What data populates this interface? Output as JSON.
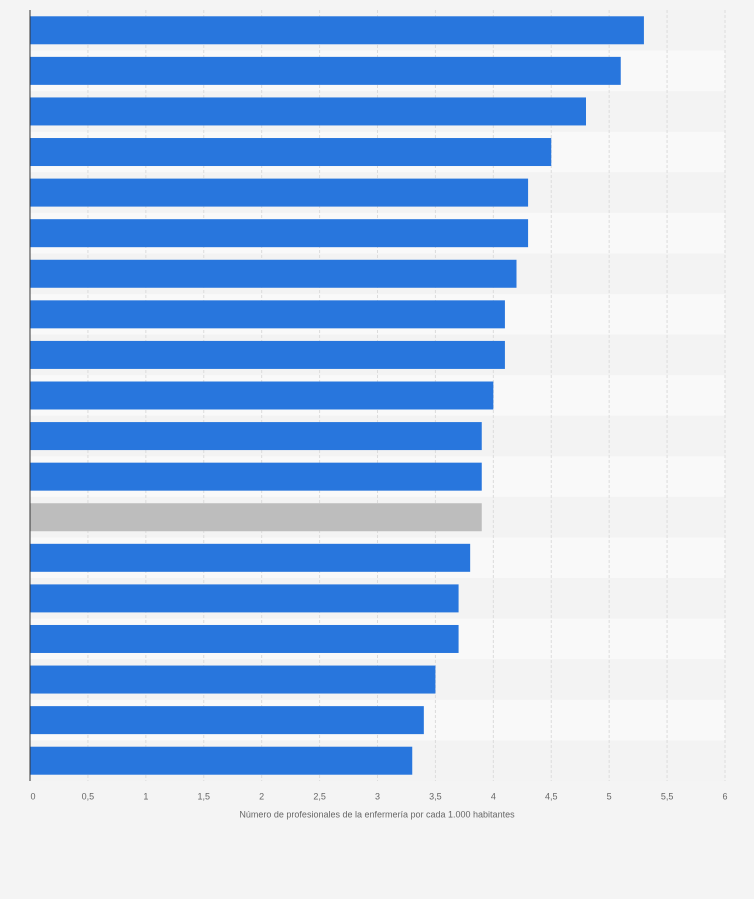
{
  "chart_data": {
    "type": "barh",
    "xlabel": "Número de profesionales de la enfermería por cada 1.000 habitantes",
    "categories": [
      null,
      null,
      null,
      null,
      null,
      null,
      null,
      null,
      null,
      null,
      null,
      null,
      null,
      null,
      null,
      null,
      null,
      null,
      null
    ],
    "values": [
      5.3,
      5.1,
      4.8,
      4.5,
      4.3,
      4.3,
      4.2,
      4.1,
      4.1,
      4.0,
      3.9,
      3.9,
      3.9,
      3.8,
      3.7,
      3.7,
      3.5,
      3.4,
      3.3
    ],
    "colors": [
      "#2876dd",
      "#2876dd",
      "#2876dd",
      "#2876dd",
      "#2876dd",
      "#2876dd",
      "#2876dd",
      "#2876dd",
      "#2876dd",
      "#2876dd",
      "#2876dd",
      "#2876dd",
      "#bdbdbd",
      "#2876dd",
      "#2876dd",
      "#2876dd",
      "#2876dd",
      "#2876dd",
      "#2876dd"
    ],
    "xlim": [
      0,
      6
    ],
    "xticks": [
      0,
      {
        "value": 0.5,
        "label": "0,5"
      },
      1,
      {
        "value": 1.5,
        "label": "1,5"
      },
      2,
      {
        "value": 2.5,
        "label": "2,5"
      },
      3,
      {
        "value": 3.5,
        "label": "3,5"
      },
      4,
      {
        "value": 4.5,
        "label": "4,5"
      },
      5,
      {
        "value": 5.5,
        "label": "5,5"
      },
      6
    ],
    "grid": true
  }
}
